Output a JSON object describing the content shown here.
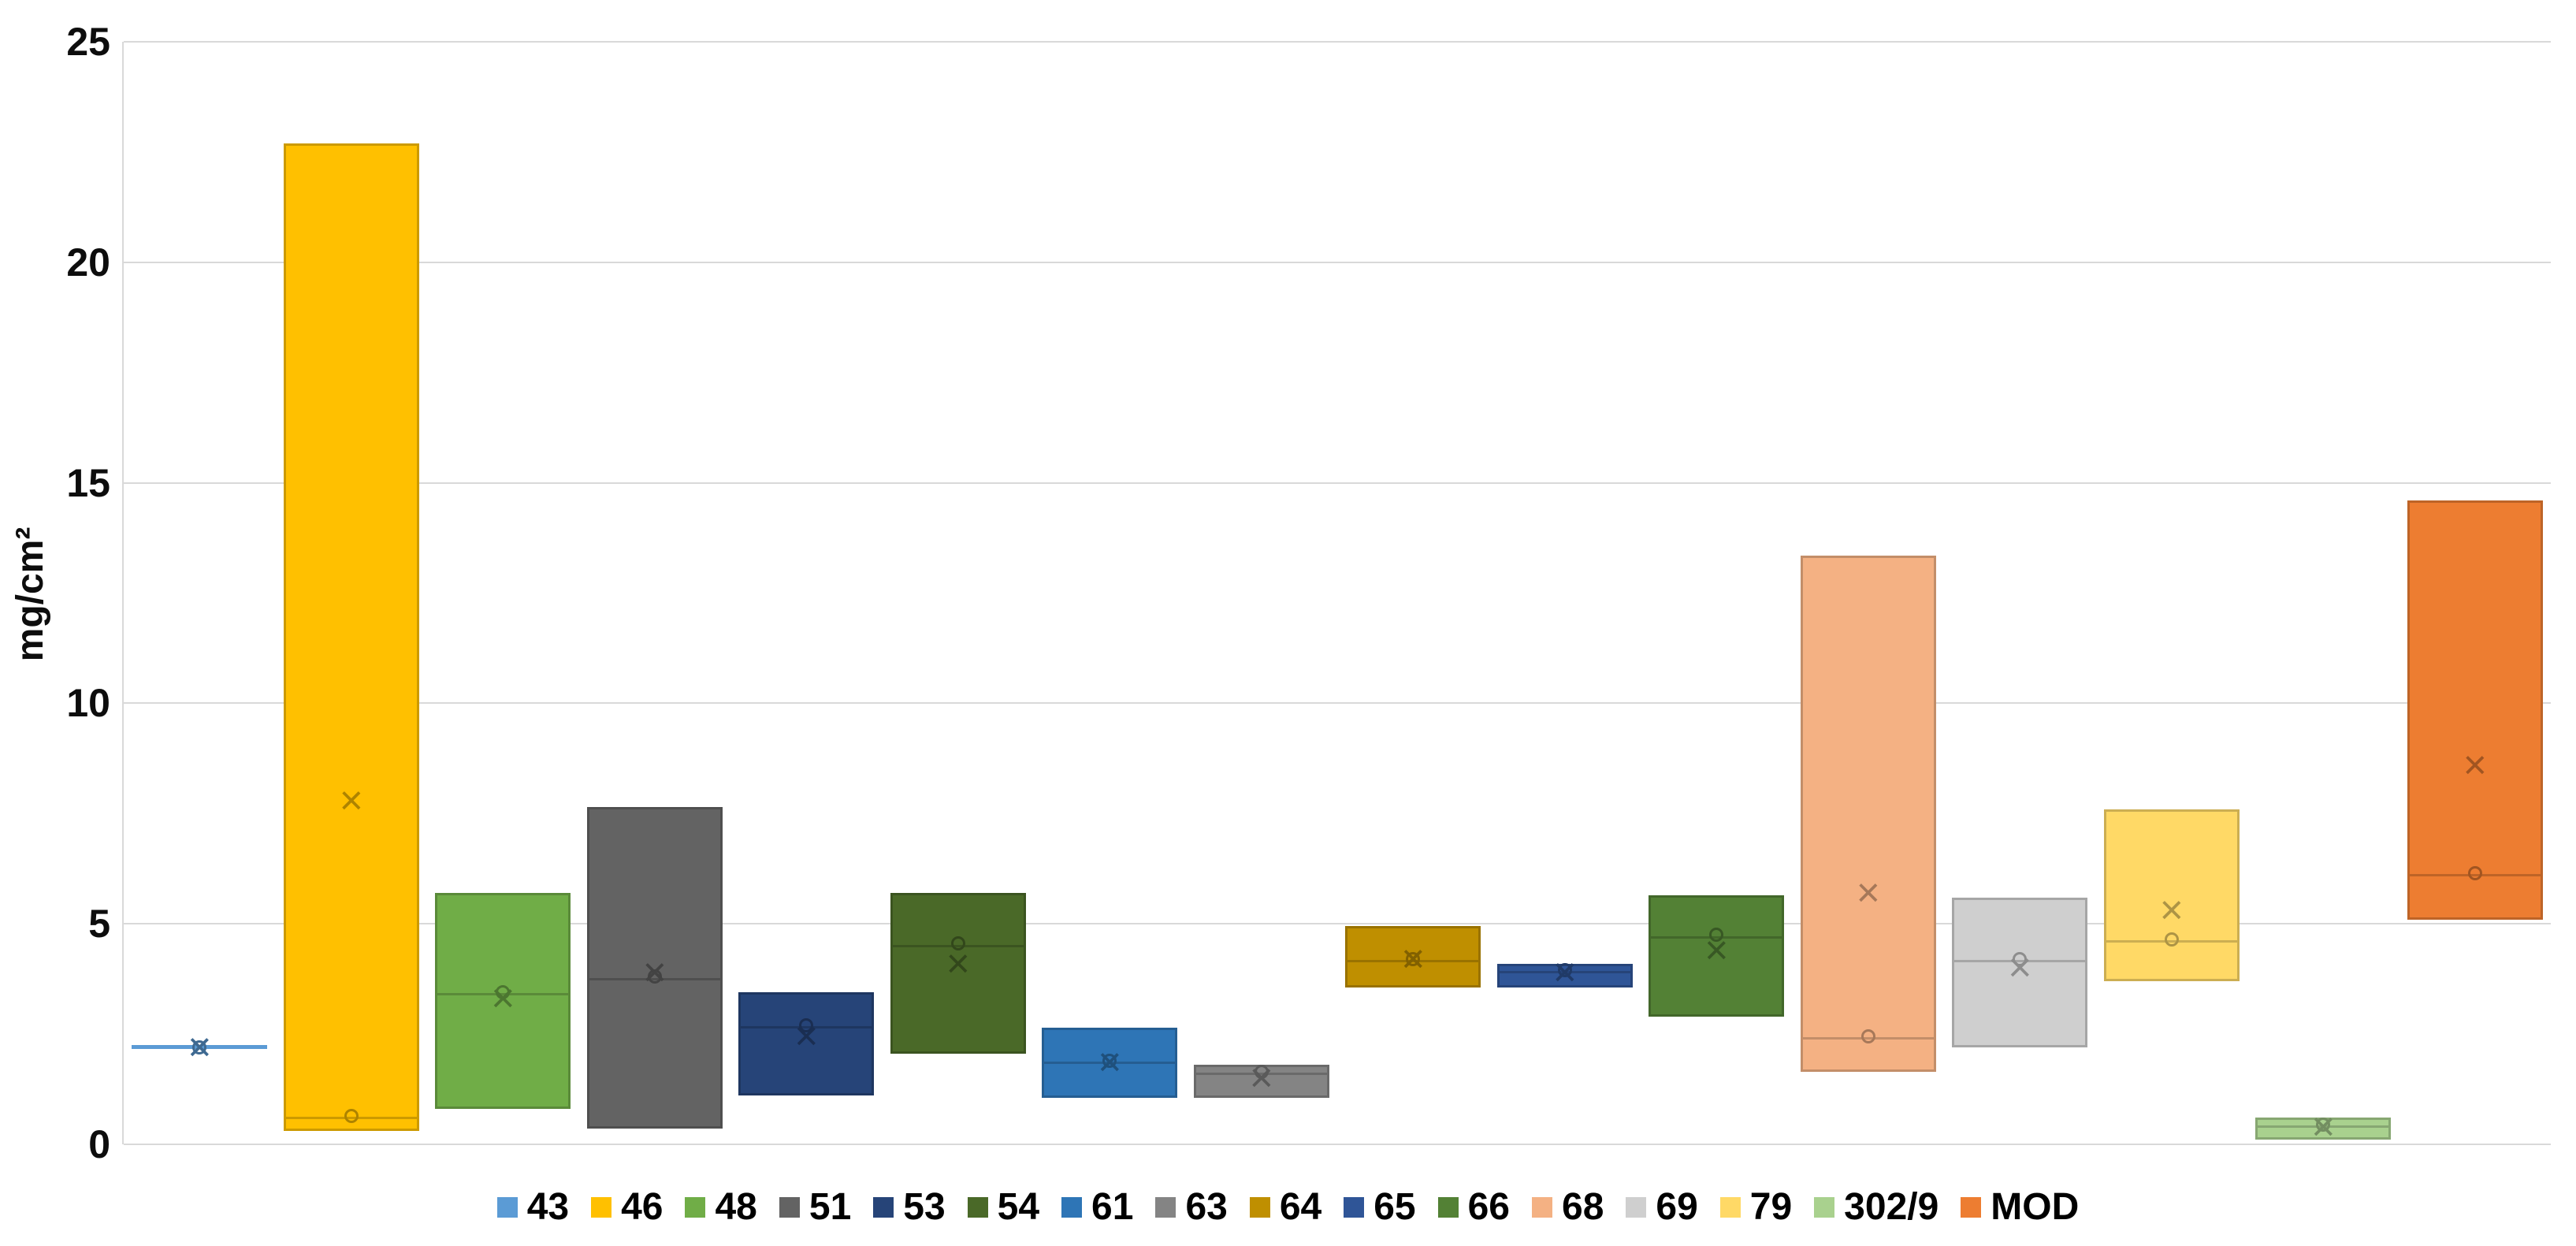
{
  "chart_data": {
    "type": "box",
    "title": "",
    "ylabel": "mg/cm²",
    "xlabel": "",
    "ylim": [
      0,
      25
    ],
    "y_ticks": [
      0,
      5,
      10,
      15,
      20,
      25
    ],
    "grid": true,
    "legend_position": "bottom",
    "marker_legend": {
      "mean": "x-marker",
      "median": "circle-marker"
    },
    "series": [
      {
        "name": "43",
        "color": "#5B9BD5",
        "q1": 2.2,
        "q3": 2.2,
        "median": 2.2,
        "mean": 2.2,
        "flat": true
      },
      {
        "name": "46",
        "color": "#FFC000",
        "q1": 0.3,
        "q3": 22.7,
        "median": 0.65,
        "mean": 7.8,
        "flat": false
      },
      {
        "name": "48",
        "color": "#70AD47",
        "q1": 0.8,
        "q3": 5.7,
        "median": 3.45,
        "mean": 3.3,
        "flat": false
      },
      {
        "name": "51",
        "color": "#636363",
        "q1": 0.35,
        "q3": 7.65,
        "median": 3.8,
        "mean": 3.9,
        "flat": false
      },
      {
        "name": "53",
        "color": "#264478",
        "q1": 1.1,
        "q3": 3.45,
        "median": 2.7,
        "mean": 2.45,
        "flat": false
      },
      {
        "name": "54",
        "color": "#4A6928",
        "q1": 2.05,
        "q3": 5.7,
        "median": 4.55,
        "mean": 4.1,
        "flat": false
      },
      {
        "name": "61",
        "color": "#2E75B6",
        "q1": 1.05,
        "q3": 2.65,
        "median": 1.9,
        "mean": 1.85,
        "flat": false
      },
      {
        "name": "63",
        "color": "#848484",
        "q1": 1.05,
        "q3": 1.8,
        "median": 1.65,
        "mean": 1.5,
        "flat": false
      },
      {
        "name": "64",
        "color": "#BF8F00",
        "q1": 3.55,
        "q3": 4.95,
        "median": 4.2,
        "mean": 4.2,
        "flat": false
      },
      {
        "name": "65",
        "color": "#2F5597",
        "q1": 3.55,
        "q3": 4.1,
        "median": 3.95,
        "mean": 3.9,
        "flat": false
      },
      {
        "name": "66",
        "color": "#538135",
        "q1": 2.9,
        "q3": 5.65,
        "median": 4.75,
        "mean": 4.4,
        "flat": false
      },
      {
        "name": "68",
        "color": "#F4B183",
        "q1": 1.65,
        "q3": 13.35,
        "median": 2.45,
        "mean": 5.7,
        "flat": false
      },
      {
        "name": "69",
        "color": "#CFCFCF",
        "q1": 2.2,
        "q3": 5.6,
        "median": 4.2,
        "mean": 4.0,
        "flat": false
      },
      {
        "name": "79",
        "color": "#FFD966",
        "q1": 3.7,
        "q3": 7.6,
        "median": 4.65,
        "mean": 5.3,
        "flat": false
      },
      {
        "name": "302/9",
        "color": "#A9D18E",
        "q1": 0.1,
        "q3": 0.6,
        "median": 0.45,
        "mean": 0.4,
        "flat": false
      },
      {
        "name": "MOD",
        "color": "#ED7D31",
        "q1": 5.1,
        "q3": 14.6,
        "median": 6.15,
        "mean": 8.6,
        "flat": false
      }
    ]
  },
  "icons": {
    "mean_marker_glyph": "×"
  },
  "colors": {
    "gridline": "#d9d9d9",
    "tick_text": "#0d0d0d",
    "legend_text": "#000000"
  }
}
